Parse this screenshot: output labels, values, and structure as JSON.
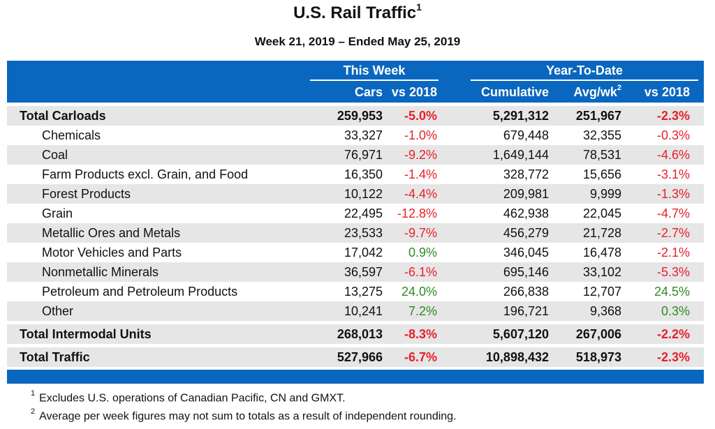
{
  "title": "U.S. Rail Traffic",
  "title_sup": "1",
  "subtitle": "Week 21, 2019 – Ended May 25, 2019",
  "header": {
    "group_this_week": "This Week",
    "group_ytd": "Year-To-Date",
    "col_cars": "Cars",
    "col_vs2018": "vs 2018",
    "col_cumulative": "Cumulative",
    "col_avgwk": "Avg/wk",
    "col_avgwk_sup": "2",
    "col_ytd_vs2018": "vs 2018"
  },
  "colors": {
    "header_blue": "#0a67bf",
    "negative": "#e8202a",
    "positive": "#2e8b22",
    "shade": "#e6e6e6"
  },
  "rows": [
    {
      "label": "Total Carloads",
      "cars": "259,953",
      "vs2018": "-5.0%",
      "cumulative": "5,291,312",
      "avgwk": "251,967",
      "ytd_vs2018": "-2.3%"
    },
    {
      "label": "Chemicals",
      "cars": "33,327",
      "vs2018": "-1.0%",
      "cumulative": "679,448",
      "avgwk": "32,355",
      "ytd_vs2018": "-0.3%"
    },
    {
      "label": "Coal",
      "cars": "76,971",
      "vs2018": "-9.2%",
      "cumulative": "1,649,144",
      "avgwk": "78,531",
      "ytd_vs2018": "-4.6%"
    },
    {
      "label": "Farm Products excl. Grain, and Food",
      "cars": "16,350",
      "vs2018": "-1.4%",
      "cumulative": "328,772",
      "avgwk": "15,656",
      "ytd_vs2018": "-3.1%"
    },
    {
      "label": "Forest Products",
      "cars": "10,122",
      "vs2018": "-4.4%",
      "cumulative": "209,981",
      "avgwk": "9,999",
      "ytd_vs2018": "-1.3%"
    },
    {
      "label": "Grain",
      "cars": "22,495",
      "vs2018": "-12.8%",
      "cumulative": "462,938",
      "avgwk": "22,045",
      "ytd_vs2018": "-4.7%"
    },
    {
      "label": "Metallic Ores and Metals",
      "cars": "23,533",
      "vs2018": "-9.7%",
      "cumulative": "456,279",
      "avgwk": "21,728",
      "ytd_vs2018": "-2.7%"
    },
    {
      "label": "Motor Vehicles and Parts",
      "cars": "17,042",
      "vs2018": "0.9%",
      "cumulative": "346,045",
      "avgwk": "16,478",
      "ytd_vs2018": "-2.1%"
    },
    {
      "label": "Nonmetallic Minerals",
      "cars": "36,597",
      "vs2018": "-6.1%",
      "cumulative": "695,146",
      "avgwk": "33,102",
      "ytd_vs2018": "-5.3%"
    },
    {
      "label": "Petroleum and Petroleum Products",
      "cars": "13,275",
      "vs2018": "24.0%",
      "cumulative": "266,838",
      "avgwk": "12,707",
      "ytd_vs2018": "24.5%"
    },
    {
      "label": "Other",
      "cars": "10,241",
      "vs2018": "7.2%",
      "cumulative": "196,721",
      "avgwk": "9,368",
      "ytd_vs2018": "0.3%"
    },
    {
      "label": "Total Intermodal Units",
      "cars": "268,013",
      "vs2018": "-8.3%",
      "cumulative": "5,607,120",
      "avgwk": "267,006",
      "ytd_vs2018": "-2.2%"
    },
    {
      "label": "Total Traffic",
      "cars": "527,966",
      "vs2018": "-6.7%",
      "cumulative": "10,898,432",
      "avgwk": "518,973",
      "ytd_vs2018": "-2.3%"
    }
  ],
  "footnotes": [
    {
      "mark": "1",
      "text": "Excludes U.S. operations of Canadian Pacific, CN and GMXT."
    },
    {
      "mark": "2",
      "text": "Average per week figures may not sum to totals as a result of independent rounding."
    }
  ]
}
